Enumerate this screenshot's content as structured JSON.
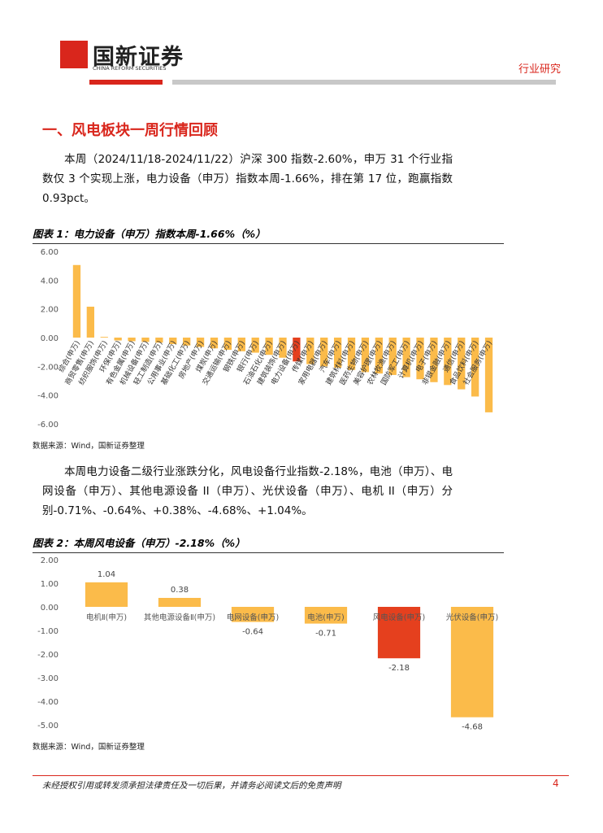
{
  "header": {
    "brand": "国新证券",
    "brand_en": "CHINA REFORM SECURITIES",
    "tag": "行业研究"
  },
  "section_title": "一、风电板块一周行情回顾",
  "paragraphs": [
    "本周（2024/11/18-2024/11/22）沪深 300 指数-2.60%，申万 31 个行业指数仅 3 个实现上涨，电力设备（申万）指数本周-1.66%，排在第 17 位，跑赢指数 0.93pct。",
    "本周电力设备二级行业涨跌分化，风电设备行业指数-2.18%，电池（申万）、电网设备（申万）、其他电源设备 II（申万）、光伏设备（申万）、电机 II（申万）分别-0.71%、-0.64%、+0.38%、-4.68%、+1.04%。"
  ],
  "chart_data": [
    {
      "type": "bar",
      "title": "图表 1：电力设备（申万）指数本周-1.66%（%）",
      "source": "数据来源：Wind，国新证券整理",
      "categories": [
        "综合(申万)",
        "商贸零售(申万)",
        "纺织服饰(申万)",
        "环保(申万)",
        "有色金属(申万)",
        "机械设备(申万)",
        "轻工制造(申万)",
        "公用事业(申万)",
        "基础化工(申万)",
        "房地产(申万)",
        "煤炭(申万)",
        "交通运输(申万)",
        "钢铁(申万)",
        "银行(申万)",
        "石油石化(申万)",
        "建筑装饰(申万)",
        "电力设备(申万)",
        "传媒(申万)",
        "家用电器(申万)",
        "汽车(申万)",
        "建筑材料(申万)",
        "医药生物(申万)",
        "美容护理(申万)",
        "农林牧渔(申万)",
        "国防军工(申万)",
        "计算机(申万)",
        "电子(申万)",
        "非银金融(申万)",
        "通信(申万)",
        "食品饮料(申万)",
        "社会服务(申万)"
      ],
      "values": [
        5.05,
        2.15,
        0.05,
        -0.2,
        -0.25,
        -0.3,
        -0.35,
        -0.45,
        -0.55,
        -0.65,
        -0.75,
        -0.85,
        -0.95,
        -1.05,
        -1.2,
        -1.4,
        -1.66,
        -1.85,
        -2.0,
        -2.1,
        -2.25,
        -2.4,
        -2.5,
        -2.6,
        -2.75,
        -2.9,
        -3.1,
        -3.3,
        -3.6,
        -4.1,
        -5.2
      ],
      "color": "#fbbb4a",
      "highlight_color": "#e5401e",
      "highlight_index": 16,
      "ylim": [
        -6,
        6
      ],
      "yticks": [
        {
          "value": 6,
          "label": "6.00"
        },
        {
          "value": 4,
          "label": "4.00"
        },
        {
          "value": 2,
          "label": "2.00"
        },
        {
          "value": 0,
          "label": "0.00"
        },
        {
          "value": -2,
          "label": "-2.00"
        },
        {
          "value": -4,
          "label": "-4.00"
        },
        {
          "value": -6,
          "label": "-6.00"
        }
      ]
    },
    {
      "type": "bar",
      "title": "图表 2：本周风电设备（申万）-2.18%（%）",
      "source": "数据来源：Wind，国新证券整理",
      "categories": [
        "电机Ⅱ(申万)",
        "其他电源设备Ⅱ(申万)",
        "电网设备(申万)",
        "电池(申万)",
        "风电设备(申万)",
        "光伏设备(申万)"
      ],
      "values": [
        1.04,
        0.38,
        -0.64,
        -0.71,
        -2.18,
        -4.68
      ],
      "color": "#fbbb4a",
      "highlight_color": "#e5401e",
      "highlight_index": 4,
      "ylim": [
        -5,
        2
      ],
      "yticks": [
        {
          "value": 2,
          "label": "2.00"
        },
        {
          "value": 1,
          "label": "1.00"
        },
        {
          "value": 0,
          "label": "0.00"
        },
        {
          "value": -1,
          "label": "-1.00"
        },
        {
          "value": -2,
          "label": "-2.00"
        },
        {
          "value": -3,
          "label": "-3.00"
        },
        {
          "value": -4,
          "label": "-4.00"
        },
        {
          "value": -5,
          "label": "-5.00"
        }
      ]
    }
  ],
  "footer": {
    "disclaimer": "未经授权引用或转发须承担法律责任及一切后果，并请务必阅读文后的免责声明",
    "page": "4"
  }
}
